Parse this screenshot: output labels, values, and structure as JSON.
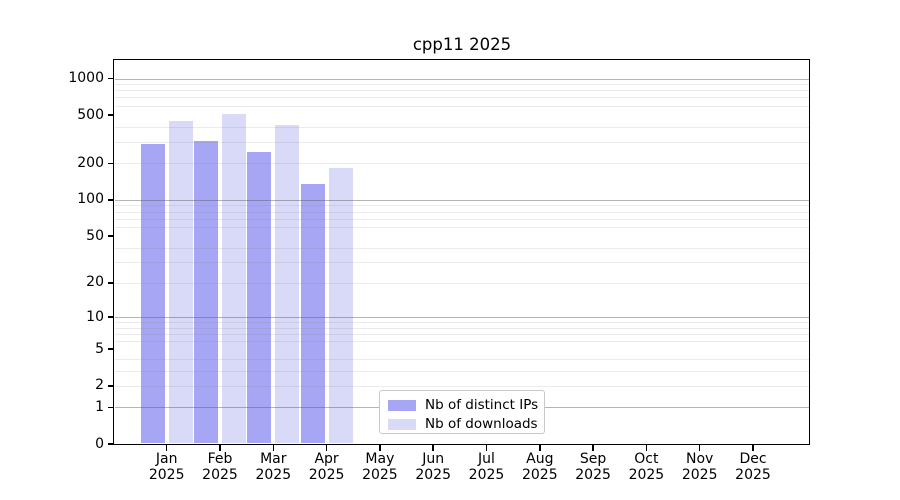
{
  "chart_data": {
    "type": "bar",
    "title": "cpp11 2025",
    "categories": [
      "Jan",
      "Feb",
      "Mar",
      "Apr",
      "May",
      "Jun",
      "Jul",
      "Aug",
      "Sep",
      "Oct",
      "Nov",
      "Dec"
    ],
    "year_label": "2025",
    "series": [
      {
        "name": "Nb of distinct IPs",
        "color": "#a6a6f4",
        "values": [
          290,
          305,
          250,
          135,
          null,
          null,
          null,
          null,
          null,
          null,
          null,
          null
        ]
      },
      {
        "name": "Nb of downloads",
        "color": "#d9d9f8",
        "values": [
          450,
          510,
          415,
          185,
          null,
          null,
          null,
          null,
          null,
          null,
          null,
          null
        ]
      }
    ],
    "yaxis": {
      "scale": "log1p",
      "tick_values": [
        0,
        1,
        2,
        5,
        10,
        20,
        50,
        100,
        200,
        500,
        1000
      ],
      "major_gridlines": [
        1,
        10,
        100,
        1000
      ],
      "minor_gridlines": [
        2,
        3,
        4,
        6,
        7,
        8,
        9,
        20,
        30,
        40,
        60,
        70,
        80,
        90,
        200,
        300,
        400,
        600,
        700,
        800,
        900
      ],
      "ylim_bottom": 0
    },
    "xaxis": {
      "tick_label_line2": "2025"
    },
    "legend": {
      "position": "lower center",
      "entries": [
        "Nb of distinct IPs",
        "Nb of downloads"
      ]
    },
    "grid": true,
    "grid_above_bars": true,
    "colors": {
      "bar_distinct_ips": "#a6a6f4",
      "bar_downloads": "#d9d9f8",
      "major_grid": "#b7b7b7",
      "minor_grid": "#e9e9e9",
      "axis": "#000000",
      "background": "#ffffff"
    }
  }
}
